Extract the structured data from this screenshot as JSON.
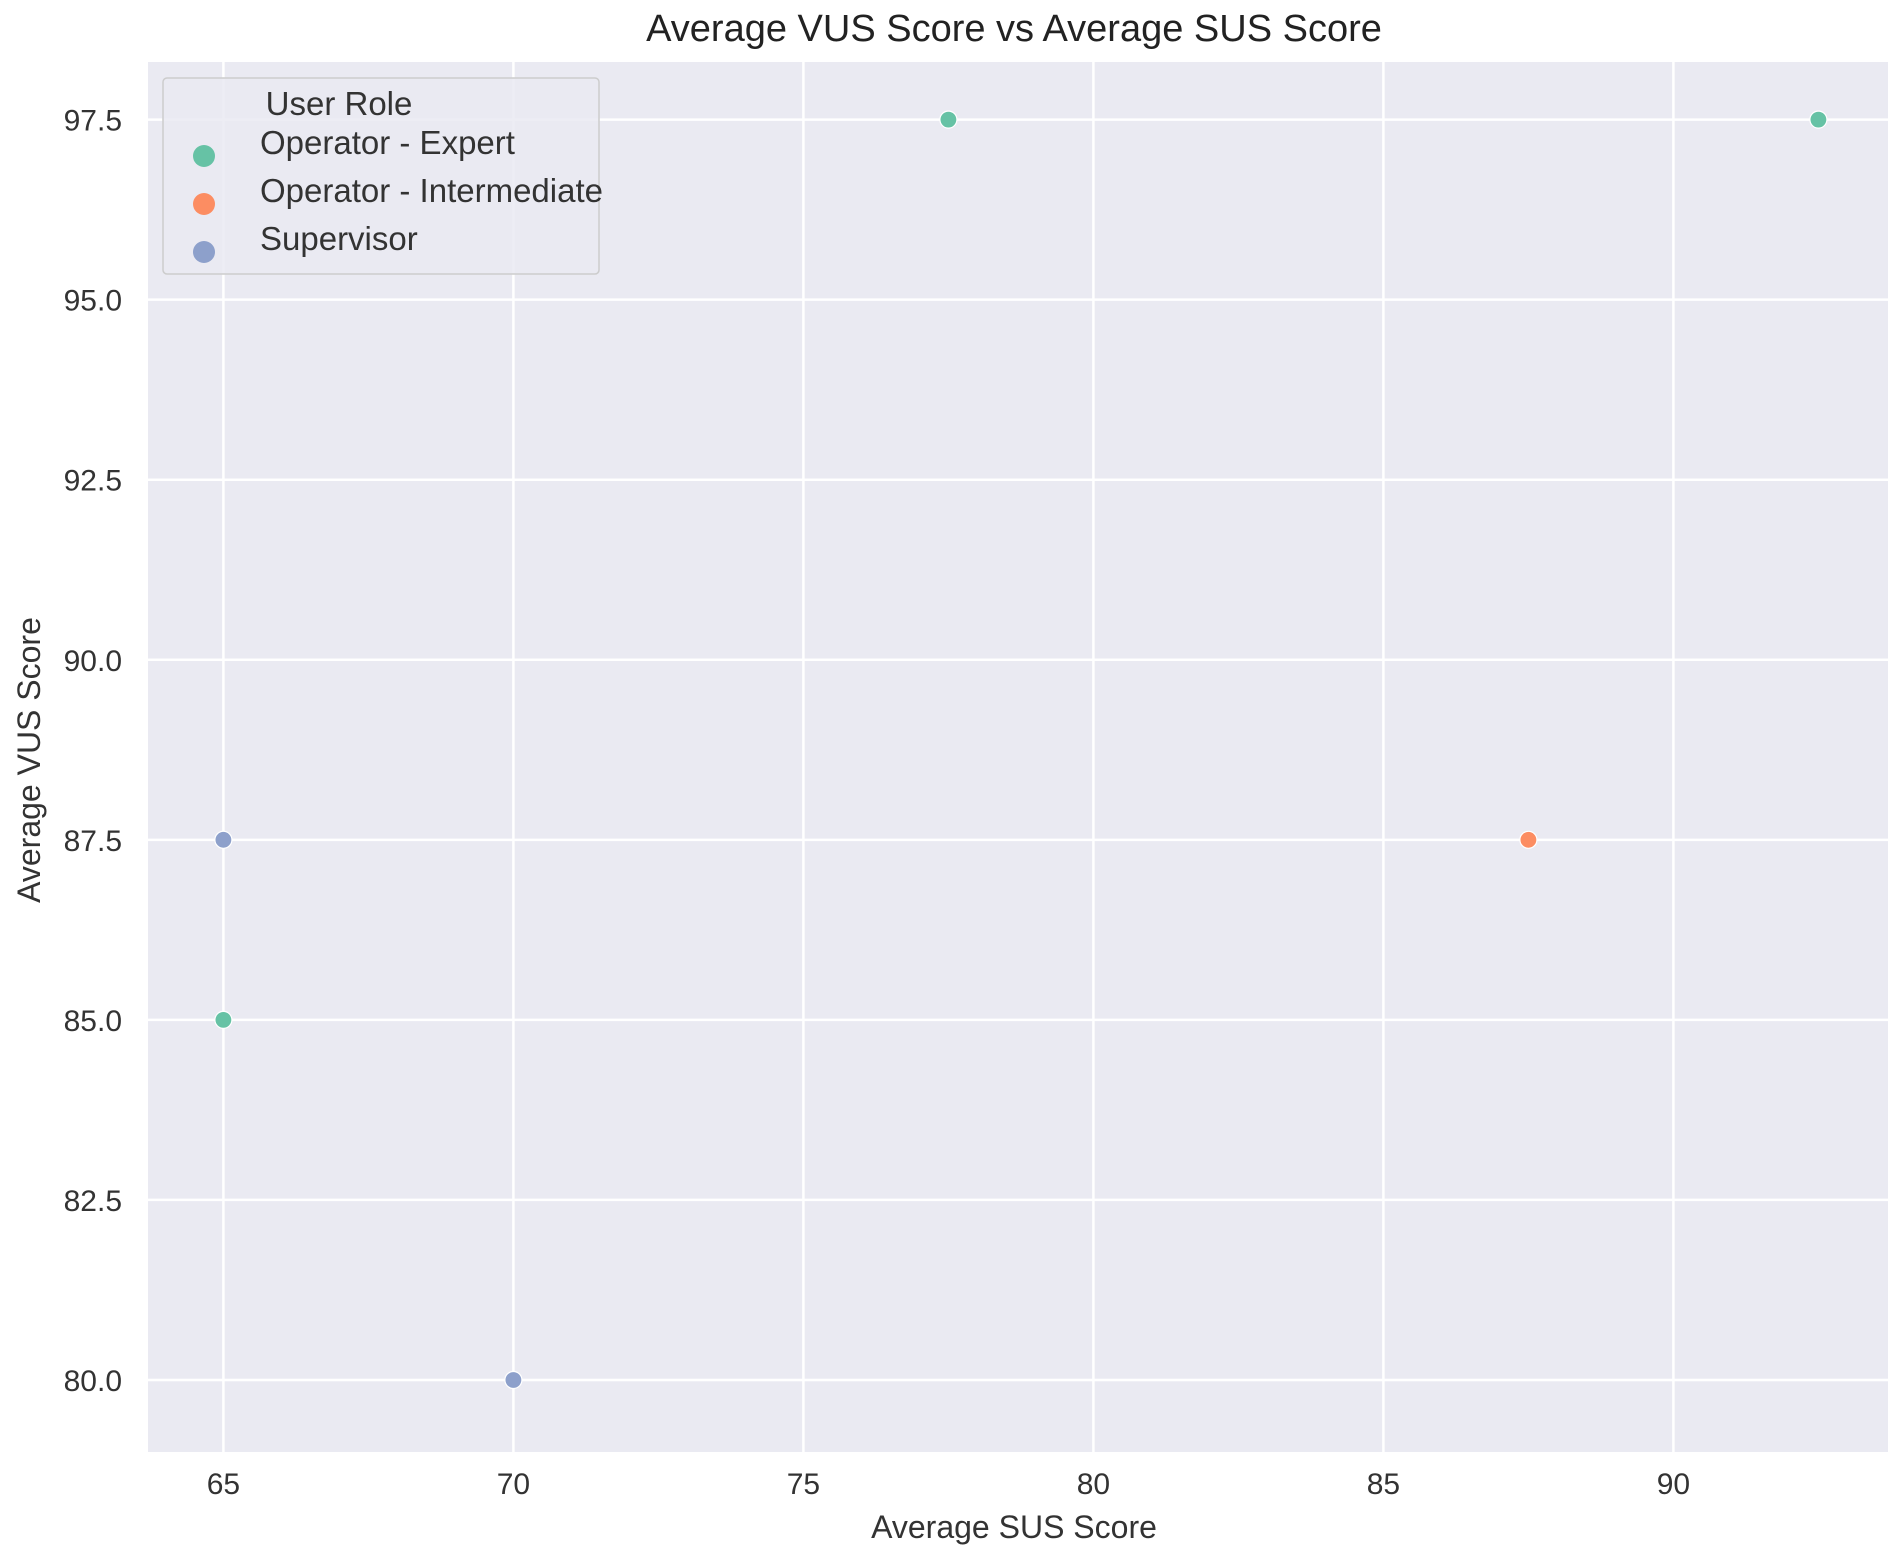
{
  "chart_data": {
    "type": "scatter",
    "title": "Average VUS Score vs Average SUS Score",
    "xlabel": "Average SUS Score",
    "ylabel": "Average VUS Score",
    "xlim": [
      63.7,
      93.7
    ],
    "ylim": [
      79.0,
      98.3
    ],
    "xticks": [
      "65",
      "70",
      "75",
      "80",
      "85",
      "90"
    ],
    "xtick_values": [
      65,
      70,
      75,
      80,
      85,
      90
    ],
    "yticks": [
      "80.0",
      "82.5",
      "85.0",
      "87.5",
      "90.0",
      "92.5",
      "95.0",
      "97.5"
    ],
    "ytick_values": [
      80.0,
      82.5,
      85.0,
      87.5,
      90.0,
      92.5,
      95.0,
      97.5
    ],
    "grid": true,
    "background_color": "#eaeaf2",
    "legend": {
      "title": "User Role",
      "placement": "upper-left"
    },
    "series": [
      {
        "name": "Operator - Expert",
        "color": "#66c2a5",
        "points": [
          {
            "x": 77.5,
            "y": 97.5
          },
          {
            "x": 92.5,
            "y": 97.5
          },
          {
            "x": 65.0,
            "y": 85.0
          }
        ]
      },
      {
        "name": "Operator - Intermediate",
        "color": "#fc8d62",
        "points": [
          {
            "x": 87.5,
            "y": 87.5
          }
        ]
      },
      {
        "name": "Supervisor",
        "color": "#8da0cb",
        "points": [
          {
            "x": 65.0,
            "y": 87.5
          },
          {
            "x": 70.0,
            "y": 80.0
          }
        ]
      }
    ]
  }
}
